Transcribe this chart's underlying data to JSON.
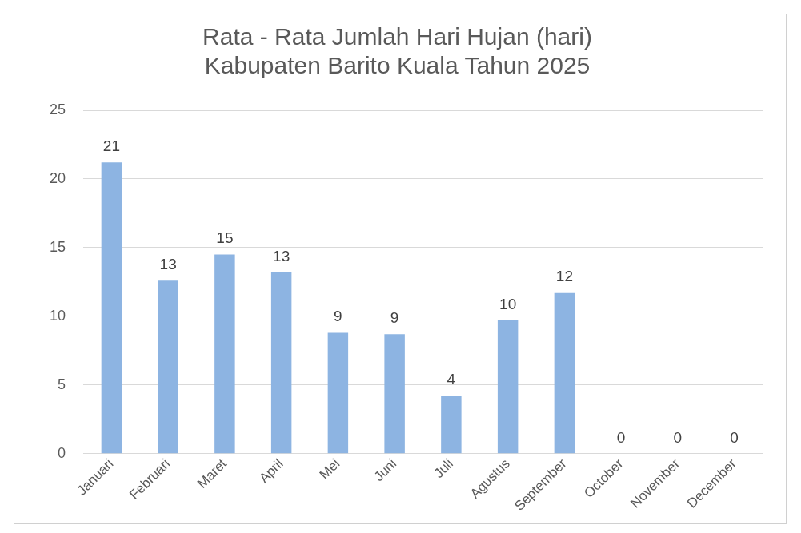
{
  "chart_data": {
    "type": "bar",
    "title": "Rata - Rata Jumlah Hari Hujan (hari)\nKabupaten Barito Kuala Tahun 2025",
    "categories": [
      "Januari",
      "Februari",
      "Maret",
      "April",
      "Mei",
      "Juni",
      "Juli",
      "Agustus",
      "September",
      "October",
      "November",
      "December"
    ],
    "values": [
      21.2,
      12.6,
      14.5,
      13.2,
      8.8,
      8.7,
      4.2,
      9.7,
      11.7,
      0,
      0,
      0
    ],
    "value_labels": [
      "21",
      "13",
      "15",
      "13",
      "9",
      "9",
      "4",
      "10",
      "12",
      "0",
      "0",
      "0"
    ],
    "color": "#8db4e2",
    "ylim": [
      0,
      25
    ],
    "yticks": [
      0,
      5,
      10,
      15,
      20,
      25
    ],
    "grid": "y",
    "legend": false
  }
}
